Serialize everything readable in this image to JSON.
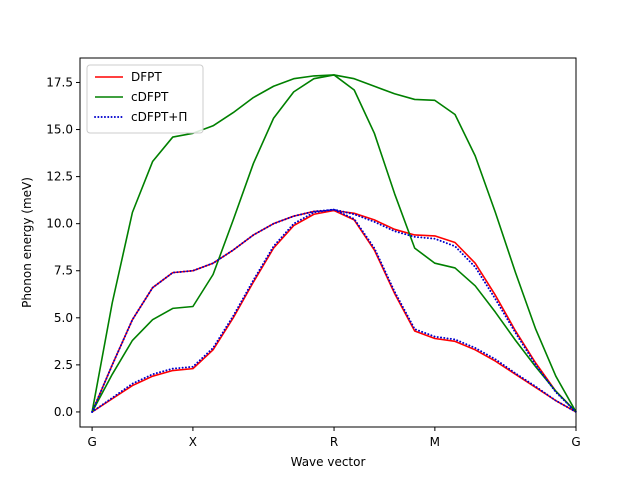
{
  "chart_data": {
    "type": "line",
    "title": "",
    "xlabel": "Wave vector",
    "ylabel": "Phonon energy (meV)",
    "ylim": [
      -0.8,
      18.8
    ],
    "xlim": [
      -0.12,
      4.8
    ],
    "x_ticks": [
      {
        "label": "G",
        "pos": 0
      },
      {
        "label": "X",
        "pos": 1
      },
      {
        "label": "R",
        "pos": 2.4
      },
      {
        "label": "M",
        "pos": 3.4
      },
      {
        "label": "G",
        "pos": 4.8
      }
    ],
    "y_ticks": [
      {
        "label": "0.0",
        "value": 0
      },
      {
        "label": "2.5",
        "value": 2.5
      },
      {
        "label": "5.0",
        "value": 5
      },
      {
        "label": "7.5",
        "value": 7.5
      },
      {
        "label": "10.0",
        "value": 10
      },
      {
        "label": "12.5",
        "value": 12.5
      },
      {
        "label": "15.0",
        "value": 15
      },
      {
        "label": "17.5",
        "value": 17.5
      }
    ],
    "legend": {
      "location": "top-left"
    },
    "series": [
      {
        "name": "DFPT",
        "color": "#ff0000",
        "style": "solid",
        "in_legend": true,
        "x": [
          0,
          0.2,
          0.4,
          0.6,
          0.8,
          1.0,
          1.2,
          1.4,
          1.6,
          1.8,
          2.0,
          2.2,
          2.4,
          2.6,
          2.8,
          3.0,
          3.2,
          3.4,
          3.6,
          3.8,
          4.0,
          4.2,
          4.4,
          4.6,
          4.8
        ],
        "y": [
          0,
          0.7,
          1.4,
          1.9,
          2.2,
          2.3,
          3.3,
          5.0,
          6.9,
          8.7,
          9.9,
          10.5,
          10.7,
          10.2,
          8.6,
          6.3,
          4.3,
          3.9,
          3.75,
          3.3,
          2.7,
          2.0,
          1.3,
          0.6,
          0
        ]
      },
      {
        "name": "DFPT",
        "color": "#ff0000",
        "style": "solid",
        "in_legend": false,
        "x": [
          0,
          0.2,
          0.4,
          0.6,
          0.8,
          1.0,
          1.2,
          1.4,
          1.6,
          1.8,
          2.0,
          2.2,
          2.4,
          2.6,
          2.8,
          3.0,
          3.2,
          3.4,
          3.6,
          3.8,
          4.0,
          4.2,
          4.4,
          4.6,
          4.8
        ],
        "y": [
          0,
          2.5,
          4.9,
          6.6,
          7.4,
          7.5,
          7.9,
          8.6,
          9.4,
          10.0,
          10.4,
          10.65,
          10.7,
          10.55,
          10.2,
          9.7,
          9.4,
          9.35,
          9.0,
          7.9,
          6.2,
          4.3,
          2.6,
          1.1,
          0
        ]
      },
      {
        "name": "cDFPT",
        "color": "#008000",
        "style": "solid",
        "in_legend": true,
        "x": [
          0,
          0.2,
          0.4,
          0.6,
          0.8,
          1.0,
          1.2,
          1.4,
          1.6,
          1.8,
          2.0,
          2.2,
          2.4,
          2.6,
          2.8,
          3.0,
          3.2,
          3.4,
          3.6,
          3.8,
          4.0,
          4.2,
          4.4,
          4.6,
          4.8
        ],
        "y": [
          0,
          2.0,
          3.8,
          4.9,
          5.5,
          5.6,
          7.3,
          10.2,
          13.2,
          15.6,
          17.0,
          17.7,
          17.9,
          17.1,
          14.8,
          11.6,
          8.7,
          7.9,
          7.65,
          6.7,
          5.3,
          3.8,
          2.4,
          1.1,
          0
        ]
      },
      {
        "name": "cDFPT",
        "color": "#008000",
        "style": "solid",
        "in_legend": false,
        "x": [
          0,
          0.2,
          0.4,
          0.6,
          0.8,
          1.0,
          1.2,
          1.4,
          1.6,
          1.8,
          2.0,
          2.2,
          2.4,
          2.6,
          2.8,
          3.0,
          3.2,
          3.4,
          3.6,
          3.8,
          4.0,
          4.2,
          4.4,
          4.6,
          4.8
        ],
        "y": [
          0,
          5.8,
          10.6,
          13.3,
          14.6,
          14.8,
          15.2,
          15.9,
          16.7,
          17.3,
          17.7,
          17.85,
          17.9,
          17.7,
          17.3,
          16.9,
          16.6,
          16.55,
          15.8,
          13.6,
          10.6,
          7.4,
          4.4,
          1.9,
          0
        ]
      },
      {
        "name": "cDFPT+Π",
        "color": "#0000cc",
        "style": "dotted",
        "in_legend": true,
        "x": [
          0,
          0.2,
          0.4,
          0.6,
          0.8,
          1.0,
          1.2,
          1.4,
          1.6,
          1.8,
          2.0,
          2.2,
          2.4,
          2.6,
          2.8,
          3.0,
          3.2,
          3.4,
          3.6,
          3.8,
          4.0,
          4.2,
          4.4,
          4.6,
          4.8
        ],
        "y": [
          0,
          0.75,
          1.5,
          2.0,
          2.3,
          2.4,
          3.4,
          5.1,
          7.0,
          8.8,
          10.0,
          10.6,
          10.75,
          10.25,
          8.7,
          6.4,
          4.4,
          4.0,
          3.85,
          3.4,
          2.8,
          2.05,
          1.35,
          0.6,
          0
        ]
      },
      {
        "name": "cDFPT+Π",
        "color": "#0000cc",
        "style": "dotted",
        "in_legend": false,
        "x": [
          0,
          0.2,
          0.4,
          0.6,
          0.8,
          1.0,
          1.2,
          1.4,
          1.6,
          1.8,
          2.0,
          2.2,
          2.4,
          2.6,
          2.8,
          3.0,
          3.2,
          3.4,
          3.6,
          3.8,
          4.0,
          4.2,
          4.4,
          4.6,
          4.8
        ],
        "y": [
          0,
          2.5,
          4.9,
          6.6,
          7.4,
          7.5,
          7.9,
          8.6,
          9.4,
          10.0,
          10.4,
          10.65,
          10.75,
          10.5,
          10.1,
          9.6,
          9.3,
          9.2,
          8.8,
          7.7,
          6.0,
          4.2,
          2.5,
          1.05,
          0
        ]
      }
    ]
  }
}
